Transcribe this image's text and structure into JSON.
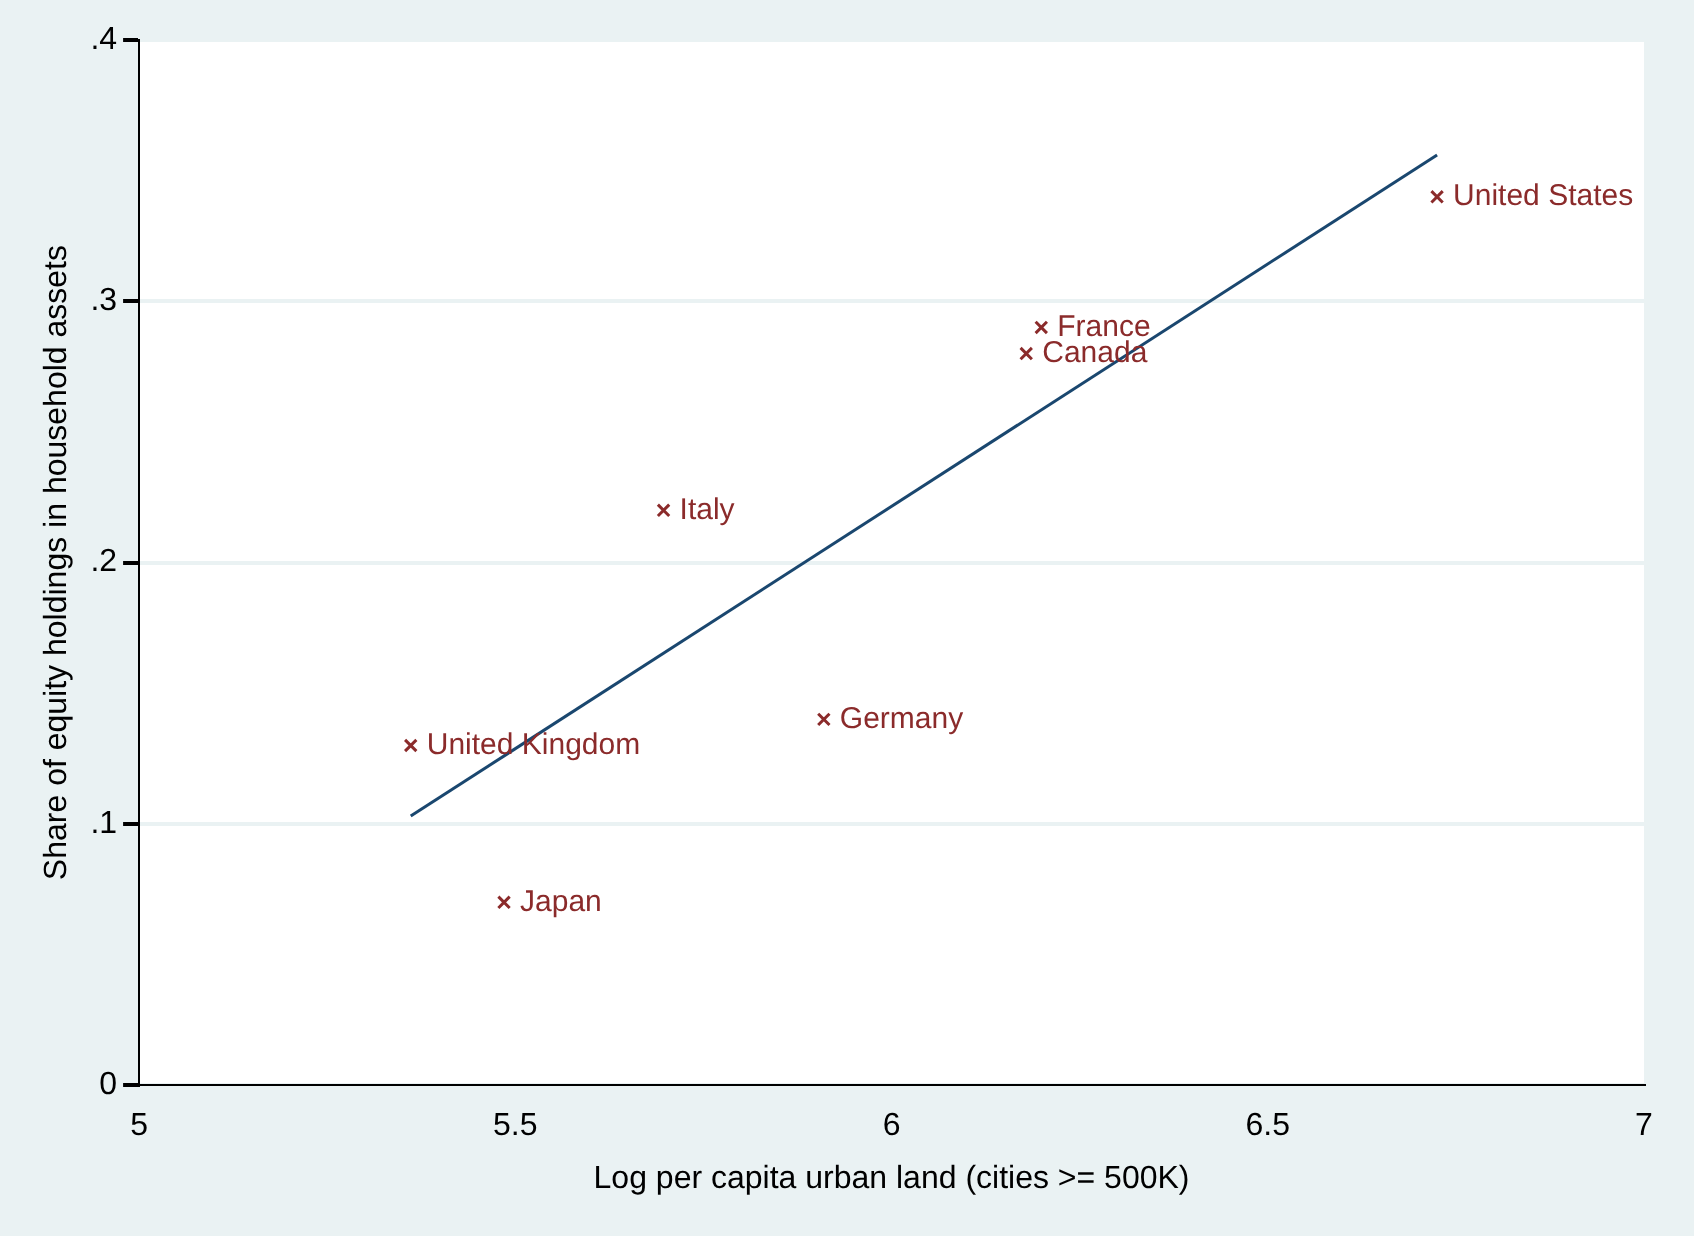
{
  "chart_data": {
    "type": "scatter",
    "xlabel": "Log per capita urban land (cities >= 500K)",
    "ylabel": "Share of equity holdings in household assets",
    "series": [
      {
        "color": "#8b2b2b",
        "marker": "cross",
        "x": [
          5.361,
          5.485,
          5.697,
          5.91,
          6.199,
          6.179,
          6.725
        ],
        "values": [
          0.13,
          0.07,
          0.22,
          0.14,
          0.29,
          0.28,
          0.34
        ]
      },
      {
        "type": "line",
        "marker": "none",
        "color": "#1a476f",
        "x": [
          5.361,
          6.725
        ],
        "values": [
          0.103,
          0.356
        ]
      }
    ],
    "annotations": [
      {
        "text": "United Kingdom",
        "x": 5.361,
        "y": 0.13
      },
      {
        "text": "Japan",
        "x": 5.485,
        "y": 0.07
      },
      {
        "text": "Italy",
        "x": 5.697,
        "y": 0.22
      },
      {
        "text": "Germany",
        "x": 5.91,
        "y": 0.14
      },
      {
        "text": "France",
        "x": 6.199,
        "y": 0.29
      },
      {
        "text": "Canada",
        "x": 6.179,
        "y": 0.28
      },
      {
        "text": "United States",
        "x": 6.725,
        "y": 0.34
      }
    ],
    "xlim": [
      5,
      7
    ],
    "xticks": [
      5,
      5.5,
      6,
      6.5,
      7
    ],
    "ylim": [
      0,
      0.4
    ],
    "yticks": [
      0,
      {
        "value": 0.1,
        "label": ".1"
      },
      {
        "value": 0.2,
        "label": ".2"
      },
      {
        "value": 0.3,
        "label": ".3"
      },
      {
        "value": 0.4,
        "label": ".4"
      }
    ],
    "grid": "y",
    "legend": false
  }
}
